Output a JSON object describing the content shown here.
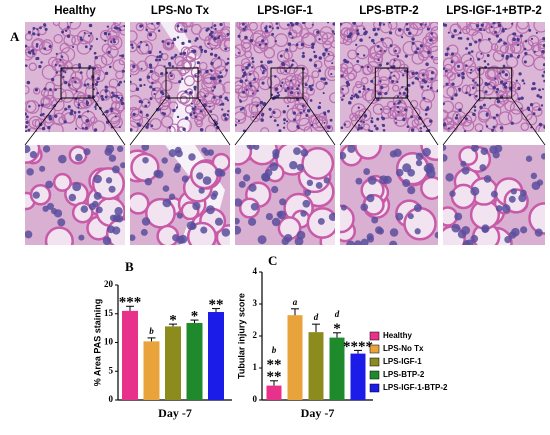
{
  "figure": {
    "panel_label": "A",
    "column_labels": [
      "Healthy",
      "LPS-No Tx",
      "LPS-IGF-1",
      "LPS-BTP-2",
      "LPS-IGF-1+BTP-2"
    ]
  },
  "chart_data": [
    {
      "type": "bar",
      "panel_label": "B",
      "y_label": "% Area PAS staining",
      "x_label": "Day -7",
      "values": [
        15.5,
        10.2,
        12.8,
        13.4,
        15.3
      ],
      "errors": [
        0.8,
        0.6,
        0.4,
        0.5,
        0.6
      ],
      "colors": [
        "#e8318a",
        "#e8a33a",
        "#8c8c1e",
        "#1f8a2c",
        "#1c1ce8"
      ],
      "annotations": [
        [
          "***"
        ],
        [
          "b"
        ],
        [
          "*"
        ],
        [
          "*"
        ],
        [
          "**"
        ]
      ],
      "ylim": [
        0,
        20
      ],
      "yticks": [
        0,
        5,
        10,
        15,
        20
      ]
    },
    {
      "type": "bar",
      "panel_label": "C",
      "y_label": "Tubular injury score",
      "x_label": "Day -7",
      "categories": [
        "Healthy",
        "LPS-No Tx",
        "LPS-IGF-1",
        "LPS-BTP-2",
        "LPS-IGF-1-BTP-2"
      ],
      "values": [
        0.45,
        2.65,
        2.12,
        1.95,
        1.45
      ],
      "errors": [
        0.15,
        0.2,
        0.25,
        0.15,
        0.1
      ],
      "colors": [
        "#e8318a",
        "#e8a33a",
        "#8c8c1e",
        "#1f8a2c",
        "#1c1ce8"
      ],
      "annotations": [
        [
          "b",
          "**",
          "**"
        ],
        [
          "a"
        ],
        [
          "d"
        ],
        [
          "d",
          "*"
        ],
        [
          "****"
        ]
      ],
      "ylim": [
        0,
        4
      ],
      "yticks": [
        0,
        1,
        2,
        3,
        4
      ]
    }
  ]
}
